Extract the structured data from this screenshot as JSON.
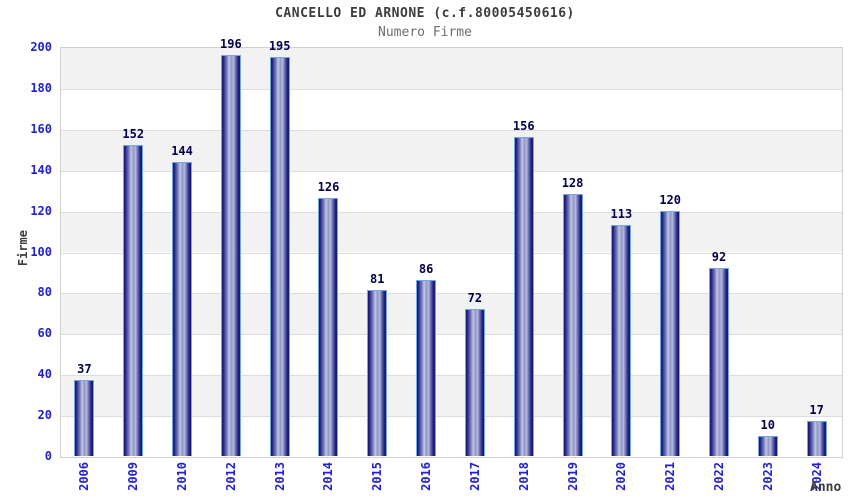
{
  "header": {
    "title": "CANCELLO ED ARNONE (c.f.80005450616)",
    "subtitle": "Numero Firme"
  },
  "chart_data": {
    "type": "bar",
    "title": "CANCELLO ED ARNONE (c.f.80005450616)",
    "subtitle": "Numero Firme",
    "xlabel": "Anno",
    "ylabel": "Firme",
    "categories": [
      "2006",
      "2009",
      "2010",
      "2012",
      "2013",
      "2014",
      "2015",
      "2016",
      "2017",
      "2018",
      "2019",
      "2020",
      "2021",
      "2022",
      "2023",
      "2024"
    ],
    "values": [
      37,
      152,
      144,
      196,
      195,
      126,
      81,
      86,
      72,
      156,
      128,
      113,
      120,
      92,
      10,
      17
    ],
    "ylim": [
      0,
      200
    ],
    "ytick_step": 20,
    "grid": true,
    "legend_position": "none",
    "background_bands": "alternating gray/white per 20 units",
    "colors": {
      "title": "#3c3c3c",
      "subtitle": "#6e6e6e",
      "tick_label": "#2222cc",
      "value_label": "#00004d",
      "axis_title": "#3c3c3c",
      "band_fill": "#f2f2f2",
      "gridline": "#dddddd",
      "plot_border": "#d0d0d0",
      "bar_border": "#74a8e0",
      "bar_dark": "#14146e",
      "bar_mid": "#7e83be",
      "bar_light": "#c3c7e4"
    }
  }
}
